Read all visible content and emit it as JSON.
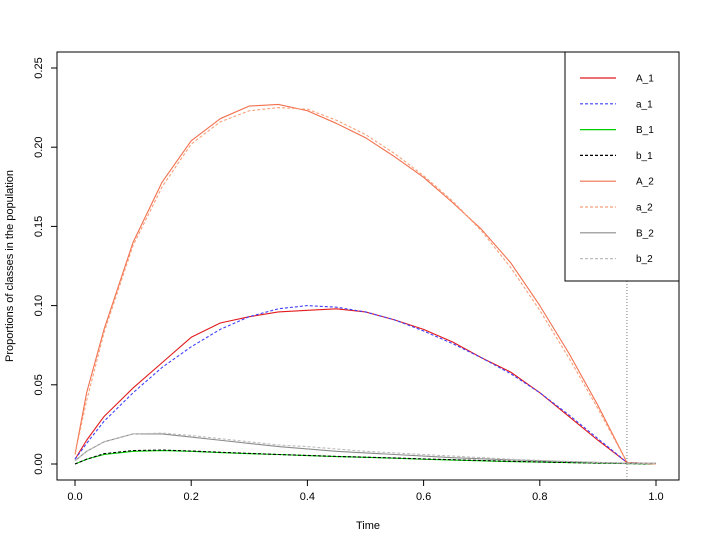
{
  "chart_data": {
    "type": "line",
    "title": "",
    "xlabel": "Time",
    "ylabel": "Proportions of classes in the population",
    "xlim": [
      0,
      1
    ],
    "ylim": [
      0,
      0.25
    ],
    "x_ticks": [
      "0.0",
      "0.2",
      "0.4",
      "0.6",
      "0.8",
      "1.0"
    ],
    "y_ticks": [
      "0.00",
      "0.05",
      "0.10",
      "0.15",
      "0.20",
      "0.25"
    ],
    "grid": false,
    "legend_position": "top-right",
    "vline_x": 0.95,
    "x": [
      0,
      0.02,
      0.05,
      0.1,
      0.15,
      0.2,
      0.25,
      0.3,
      0.35,
      0.4,
      0.45,
      0.5,
      0.55,
      0.6,
      0.65,
      0.7,
      0.75,
      0.8,
      0.85,
      0.9,
      0.95,
      1.0
    ],
    "series": [
      {
        "name": "A_1",
        "color": "#e31a1c",
        "dash": "solid",
        "values": [
          0.003,
          0.015,
          0.03,
          0.048,
          0.064,
          0.08,
          0.089,
          0.093,
          0.096,
          0.097,
          0.098,
          0.096,
          0.091,
          0.085,
          0.077,
          0.067,
          0.058,
          0.045,
          0.03,
          0.015,
          0.001,
          0.0
        ]
      },
      {
        "name": "a_1",
        "color": "#4040ff",
        "dash": "dashed",
        "values": [
          0.003,
          0.013,
          0.027,
          0.045,
          0.061,
          0.074,
          0.085,
          0.093,
          0.098,
          0.1,
          0.099,
          0.096,
          0.091,
          0.084,
          0.076,
          0.067,
          0.057,
          0.045,
          0.031,
          0.016,
          0.001,
          0.0
        ]
      },
      {
        "name": "B_1",
        "color": "#00cc00",
        "dash": "solid",
        "values": [
          0.0,
          0.003,
          0.006,
          0.008,
          0.0085,
          0.008,
          0.0072,
          0.0065,
          0.006,
          0.0053,
          0.0047,
          0.0042,
          0.0037,
          0.003,
          0.0025,
          0.002,
          0.0015,
          0.0012,
          0.0009,
          0.0006,
          0.0003,
          0.0
        ]
      },
      {
        "name": "b_1",
        "color": "#000000",
        "dash": "dashed",
        "values": [
          0.0,
          0.003,
          0.0065,
          0.0085,
          0.0088,
          0.0082,
          0.0074,
          0.0067,
          0.006,
          0.0054,
          0.0048,
          0.0043,
          0.0038,
          0.0032,
          0.0027,
          0.0022,
          0.0017,
          0.0013,
          0.0009,
          0.0006,
          0.0003,
          0.0
        ]
      },
      {
        "name": "A_2",
        "color": "#f2704e",
        "dash": "solid",
        "values": [
          0.006,
          0.045,
          0.085,
          0.14,
          0.178,
          0.204,
          0.218,
          0.226,
          0.227,
          0.223,
          0.215,
          0.206,
          0.194,
          0.181,
          0.165,
          0.148,
          0.127,
          0.1,
          0.07,
          0.037,
          0.001,
          0.0
        ]
      },
      {
        "name": "a_2",
        "color": "#f8a07a",
        "dash": "dashed",
        "values": [
          0.006,
          0.04,
          0.083,
          0.138,
          0.175,
          0.202,
          0.216,
          0.223,
          0.225,
          0.224,
          0.217,
          0.208,
          0.196,
          0.182,
          0.166,
          0.147,
          0.124,
          0.097,
          0.067,
          0.035,
          0.001,
          0.0
        ]
      },
      {
        "name": "B_2",
        "color": "#8c8c8c",
        "dash": "solid",
        "values": [
          0.002,
          0.008,
          0.014,
          0.019,
          0.019,
          0.017,
          0.015,
          0.013,
          0.011,
          0.0095,
          0.008,
          0.007,
          0.006,
          0.005,
          0.004,
          0.0033,
          0.0026,
          0.002,
          0.0015,
          0.001,
          0.0005,
          0.0005
        ]
      },
      {
        "name": "b_2",
        "color": "#bdbdbd",
        "dash": "dashed",
        "values": [
          0.002,
          0.008,
          0.014,
          0.019,
          0.0195,
          0.018,
          0.016,
          0.014,
          0.012,
          0.011,
          0.0095,
          0.008,
          0.007,
          0.006,
          0.005,
          0.004,
          0.003,
          0.0023,
          0.0016,
          0.001,
          0.0005,
          0.0005
        ]
      }
    ]
  }
}
